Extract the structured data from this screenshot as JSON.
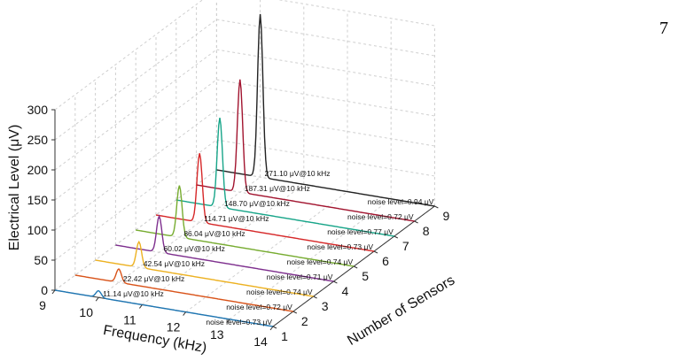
{
  "page": {
    "page_number": "7"
  },
  "chart_data": {
    "type": "line",
    "subtype": "3d-waterfall",
    "title": "",
    "xlabel": "Frequency (kHz)",
    "ylabel": "Number of Sensors",
    "zlabel": "Electrical Level (μV)",
    "xlim": [
      9,
      14
    ],
    "ylim": [
      1,
      9
    ],
    "zlim": [
      0,
      300
    ],
    "x_ticks": [
      "9",
      "10",
      "11",
      "12",
      "13",
      "14"
    ],
    "y_ticks": [
      "1",
      "2",
      "3",
      "4",
      "5",
      "6",
      "7",
      "8",
      "9"
    ],
    "z_ticks": [
      "0",
      "50",
      "100",
      "150",
      "200",
      "250",
      "300"
    ],
    "grid": true,
    "peak_frequency_khz": 10,
    "series": [
      {
        "sensors": 1,
        "color": "#1f77b4",
        "peak_uv": 11.14,
        "peak_label": "11.14 μV@10 kHz",
        "noise_label": "noise level=0.73 μV"
      },
      {
        "sensors": 2,
        "color": "#d95319",
        "peak_uv": 22.42,
        "peak_label": "22.42 μV@10 kHz",
        "noise_label": "noise level=0.72 μV"
      },
      {
        "sensors": 3,
        "color": "#edb120",
        "peak_uv": 42.54,
        "peak_label": "42.54 μV@10 kHz",
        "noise_label": "noise level=0.74 μV"
      },
      {
        "sensors": 4,
        "color": "#7e2f8e",
        "peak_uv": 60.02,
        "peak_label": "60.02 μV@10 kHz",
        "noise_label": "noise level=0.71 μV"
      },
      {
        "sensors": 5,
        "color": "#77ac30",
        "peak_uv": 86.04,
        "peak_label": "86.04 μV@10 kHz",
        "noise_label": "noise level=0.74 μV"
      },
      {
        "sensors": 6,
        "color": "#d62728",
        "peak_uv": 114.71,
        "peak_label": "114.71 μV@10 kHz",
        "noise_label": "noise level=0.73 μV"
      },
      {
        "sensors": 7,
        "color": "#17a589",
        "peak_uv": 148.7,
        "peak_label": "148.70 μV@10 kHz",
        "noise_label": "noise level=0.77 μV"
      },
      {
        "sensors": 8,
        "color": "#a2142f",
        "peak_uv": 187.31,
        "peak_label": "187.31 μV@10 kHz",
        "noise_label": "noise level=0.72 μV"
      },
      {
        "sensors": 9,
        "color": "#222222",
        "peak_uv": 271.1,
        "peak_label": "271.10 μV@10 kHz",
        "noise_label": "noise level=0.94 μV"
      }
    ]
  }
}
